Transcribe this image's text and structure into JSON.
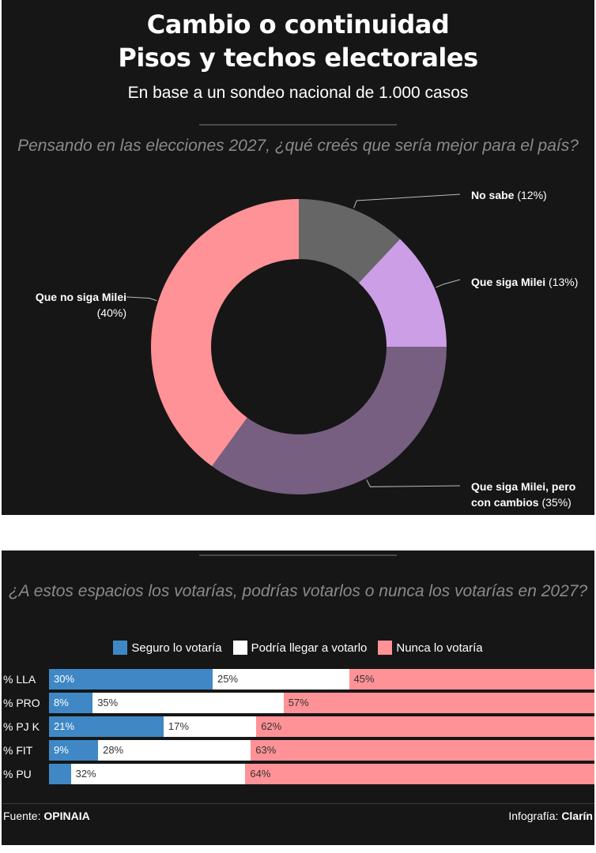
{
  "header": {
    "title_line1": "Cambio o continuidad",
    "title_line2": "Pisos y techos electorales",
    "subtitle": "En base a un sondeo nacional de 1.000 casos"
  },
  "donut": {
    "question": "Pensando en las elecciones 2027, ¿qué creés que sería mejor para el país?"
  },
  "bars": {
    "question": "¿A estos espacios los votarías, podrías votarlos o nunca los votarías en 2027?"
  },
  "footer": {
    "source_prefix": "Fuente:",
    "source_name": "OPINAIA",
    "credit_prefix": "Infografía:",
    "credit_name": "Clarín"
  },
  "colors": {
    "background": "#161616",
    "no_sabe": "#666666",
    "que_siga": "#cc9ee6",
    "siga_cambios": "#765f80",
    "no_siga": "#ff9296",
    "seguro": "#3f88c5",
    "podria": "#ffffff",
    "nunca": "#ff9296"
  },
  "chart_data": [
    {
      "type": "pie",
      "title": "Pensando en las elecciones 2027, ¿qué creés que sería mejor para el país?",
      "categories": [
        "No sabe",
        "Que siga Milei",
        "Que siga Milei, pero con cambios",
        "Que no siga Milei"
      ],
      "values": [
        12,
        13,
        35,
        40
      ],
      "value_labels": [
        "(12%)",
        "(13%)",
        "(35%)",
        "(40%)"
      ],
      "colors": [
        "#666666",
        "#cc9ee6",
        "#765f80",
        "#ff9296"
      ]
    },
    {
      "type": "bar",
      "orientation": "horizontal-stacked",
      "title": "¿A estos espacios los votarías, podrías votarlos o nunca los votarías en 2027?",
      "categories": [
        "% LLA",
        "% PRO",
        "% PJ K",
        "% FIT",
        "% PU"
      ],
      "legend": [
        "Seguro lo votaría",
        "Podría llegar a votarlo",
        "Nunca lo votaría"
      ],
      "legend_position": "top",
      "series": [
        {
          "name": "Seguro lo votaría",
          "values": [
            30,
            8,
            21,
            9,
            4
          ],
          "labels": [
            "30%",
            "8%",
            "21%",
            "9%",
            ""
          ]
        },
        {
          "name": "Podría llegar a votarlo",
          "values": [
            25,
            35,
            17,
            28,
            32
          ],
          "labels": [
            "25%",
            "35%",
            "17%",
            "28%",
            "32%"
          ]
        },
        {
          "name": "Nunca lo votaría",
          "values": [
            45,
            57,
            62,
            63,
            64
          ],
          "labels": [
            "45%",
            "57%",
            "62%",
            "63%",
            "64%"
          ]
        }
      ],
      "xlim": [
        0,
        100
      ]
    }
  ]
}
